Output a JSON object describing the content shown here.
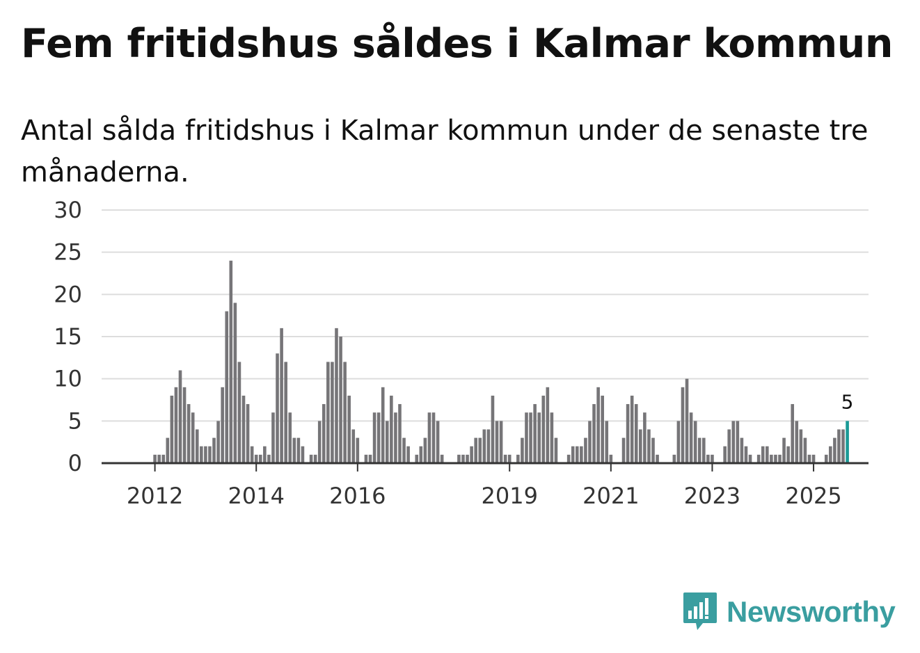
{
  "header": {
    "title": "Fem fritidshus såldes i Kalmar kommun",
    "subtitle": "Antal sålda fritidshus i Kalmar kommun under de senaste tre månaderna."
  },
  "logo": {
    "text": "Newsworthy",
    "icon": "newsworthy-chart-bubble-icon"
  },
  "colors": {
    "bar": "#767578",
    "highlight": "#1a9a96",
    "grid": "#dddddd",
    "axis": "#333333"
  },
  "chart_data": {
    "type": "bar",
    "ylim": [
      0,
      30
    ],
    "yticks": [
      0,
      5,
      10,
      15,
      20,
      25,
      30
    ],
    "xticks": [
      "2012",
      "2014",
      "2016",
      "2019",
      "2021",
      "2023",
      "2025"
    ],
    "grid": true,
    "x": [
      "2011-04",
      "2011-05",
      "2011-06",
      "2011-07",
      "2011-08",
      "2011-09",
      "2011-10",
      "2011-11",
      "2011-12",
      "2012-01",
      "2012-02",
      "2012-03",
      "2012-04",
      "2012-05",
      "2012-06",
      "2012-07",
      "2012-08",
      "2012-09",
      "2012-10",
      "2012-11",
      "2012-12",
      "2013-01",
      "2013-02",
      "2013-03",
      "2013-04",
      "2013-05",
      "2013-06",
      "2013-07",
      "2013-08",
      "2013-09",
      "2013-10",
      "2013-11",
      "2013-12",
      "2014-01",
      "2014-02",
      "2014-03",
      "2014-04",
      "2014-05",
      "2014-06",
      "2014-07",
      "2014-08",
      "2014-09",
      "2014-10",
      "2014-11",
      "2014-12",
      "2015-01",
      "2015-02",
      "2015-03",
      "2015-04",
      "2015-05",
      "2015-06",
      "2015-07",
      "2015-08",
      "2015-09",
      "2015-10",
      "2015-11",
      "2015-12",
      "2016-01",
      "2016-02",
      "2016-03",
      "2016-04",
      "2016-05",
      "2016-06",
      "2016-07",
      "2016-08",
      "2016-09",
      "2016-10",
      "2016-11",
      "2016-12",
      "2017-01",
      "2017-02",
      "2017-03",
      "2017-04",
      "2017-05",
      "2017-06",
      "2017-07",
      "2017-08",
      "2017-09",
      "2017-10",
      "2017-11",
      "2017-12",
      "2018-01",
      "2018-02",
      "2018-03",
      "2018-04",
      "2018-05",
      "2018-06",
      "2018-07",
      "2018-08",
      "2018-09",
      "2018-10",
      "2018-11",
      "2018-12",
      "2019-01",
      "2019-02",
      "2019-03",
      "2019-04",
      "2019-05",
      "2019-06",
      "2019-07",
      "2019-08",
      "2019-09",
      "2019-10",
      "2019-11",
      "2019-12",
      "2020-01",
      "2020-02",
      "2020-03",
      "2020-04",
      "2020-05",
      "2020-06",
      "2020-07",
      "2020-08",
      "2020-09",
      "2020-10",
      "2020-11",
      "2020-12",
      "2021-01",
      "2021-02",
      "2021-03",
      "2021-04",
      "2021-05",
      "2021-06",
      "2021-07",
      "2021-08",
      "2021-09",
      "2021-10",
      "2021-11",
      "2021-12",
      "2022-01",
      "2022-02",
      "2022-03",
      "2022-04",
      "2022-05",
      "2022-06",
      "2022-07",
      "2022-08",
      "2022-09",
      "2022-10",
      "2022-11",
      "2022-12",
      "2023-01",
      "2023-02",
      "2023-03",
      "2023-04",
      "2023-05",
      "2023-06",
      "2023-07",
      "2023-08",
      "2023-09",
      "2023-10",
      "2023-11",
      "2023-12",
      "2024-01",
      "2024-02",
      "2024-03",
      "2024-04",
      "2024-05",
      "2024-06",
      "2024-07",
      "2024-08",
      "2024-09",
      "2024-10",
      "2024-11",
      "2024-12",
      "2025-01",
      "2025-02",
      "2025-03",
      "2025-04",
      "2025-05",
      "2025-06",
      "2025-07",
      "2025-08",
      "2025-09"
    ],
    "values": [
      0,
      0,
      0,
      0,
      0,
      0,
      0,
      0,
      0,
      1,
      1,
      1,
      3,
      8,
      9,
      11,
      9,
      7,
      6,
      4,
      2,
      2,
      2,
      3,
      5,
      9,
      18,
      24,
      19,
      12,
      8,
      7,
      2,
      1,
      1,
      2,
      1,
      6,
      13,
      16,
      12,
      6,
      3,
      3,
      2,
      0,
      1,
      1,
      5,
      7,
      12,
      12,
      16,
      15,
      12,
      8,
      4,
      3,
      0,
      1,
      1,
      6,
      6,
      9,
      5,
      8,
      6,
      7,
      3,
      2,
      0,
      1,
      2,
      3,
      6,
      6,
      5,
      1,
      0,
      0,
      0,
      1,
      1,
      1,
      2,
      3,
      3,
      4,
      4,
      8,
      5,
      5,
      1,
      1,
      0,
      1,
      3,
      6,
      6,
      7,
      6,
      8,
      9,
      6,
      3,
      0,
      0,
      1,
      2,
      2,
      2,
      3,
      5,
      7,
      9,
      8,
      5,
      1,
      0,
      0,
      3,
      7,
      8,
      7,
      4,
      6,
      4,
      3,
      1,
      0,
      0,
      0,
      1,
      5,
      9,
      10,
      6,
      5,
      3,
      3,
      1,
      1,
      0,
      0,
      2,
      4,
      5,
      5,
      3,
      2,
      1,
      0,
      1,
      2,
      2,
      1,
      1,
      1,
      3,
      2,
      7,
      5,
      4,
      3,
      1,
      1,
      0,
      0,
      1,
      2,
      3,
      4,
      4,
      5
    ],
    "highlight_label": "5"
  }
}
